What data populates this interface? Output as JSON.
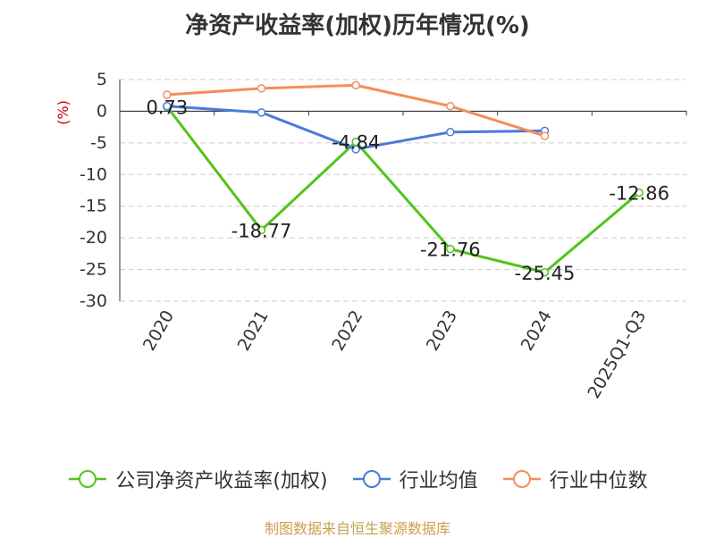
{
  "chart_data": {
    "type": "line",
    "title": "净资产收益率(加权)历年情况(%)",
    "ylabel": "(%)",
    "xlabel": "",
    "categories": [
      "2020",
      "2021",
      "2022",
      "2023",
      "2024",
      "2025Q1-Q3"
    ],
    "ylim": [
      -30,
      5
    ],
    "yticks": [
      5,
      0,
      -5,
      -10,
      -15,
      -20,
      -25,
      -30
    ],
    "grid": true,
    "legend_position": "bottom",
    "series": [
      {
        "name": "公司净资产收益率(加权)",
        "color": "#52c41a",
        "values": [
          0.73,
          -18.77,
          -4.84,
          -21.76,
          -25.45,
          -12.86
        ],
        "labels": [
          "0.73",
          "-18.77",
          "-4.84",
          "-21.76",
          "-25.45",
          "-12.86"
        ]
      },
      {
        "name": "行业均值",
        "color": "#4a7bd8",
        "values": [
          0.8,
          -0.2,
          -6.0,
          -3.3,
          -3.1,
          null
        ]
      },
      {
        "name": "行业中位数",
        "color": "#f58d5b",
        "values": [
          2.6,
          3.6,
          4.1,
          0.8,
          -3.9,
          null
        ]
      }
    ]
  },
  "colors": {
    "axis_label": "#cc0000",
    "source_note": "#c8a050"
  },
  "source_note": "制图数据来自恒生聚源数据库"
}
